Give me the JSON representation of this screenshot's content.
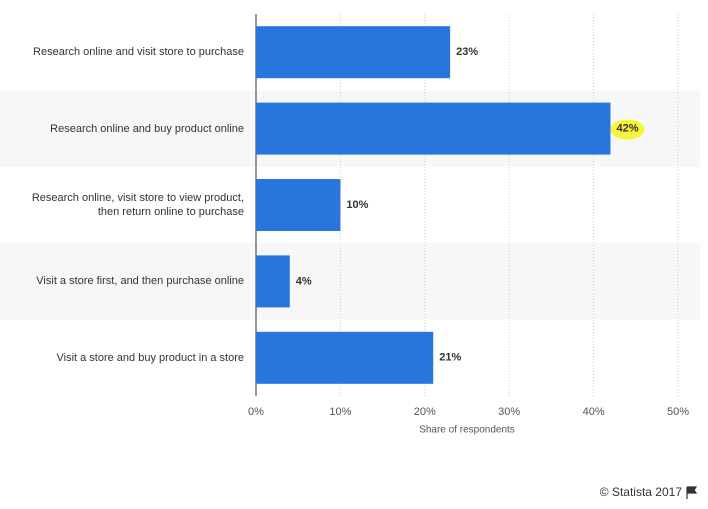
{
  "chart_data": {
    "type": "bar",
    "orientation": "horizontal",
    "categories": [
      "Research online and visit store to purchase",
      "Research online and buy product online",
      "Research online, visit store to view product, then return online to purchase",
      "Visit a store first, and then purchase online",
      "Visit a store and buy product in a store"
    ],
    "values": [
      23,
      42,
      10,
      4,
      21
    ],
    "value_labels": [
      "23%",
      "42%",
      "10%",
      "4%",
      "21%"
    ],
    "color": "#2876dd",
    "xlim": [
      0,
      50
    ],
    "xticks": [
      {
        "value": 0,
        "label": "0%"
      },
      {
        "value": 10,
        "label": "10%"
      },
      {
        "value": 20,
        "label": "20%"
      },
      {
        "value": 30,
        "label": "30%"
      },
      {
        "value": 40,
        "label": "40%"
      },
      {
        "value": 50,
        "label": "50%"
      }
    ],
    "xlabel": "Share of respondents",
    "grid": true,
    "credit": "© Statista 2017"
  }
}
